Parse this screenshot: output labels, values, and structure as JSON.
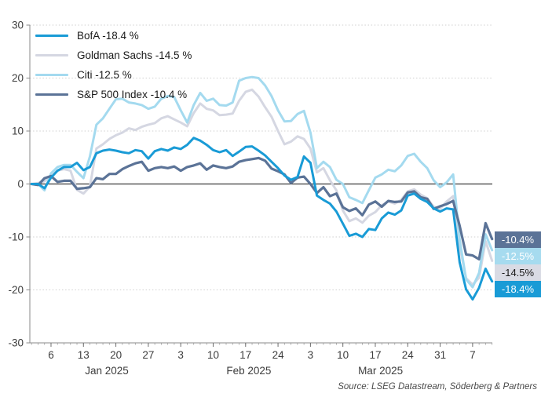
{
  "source": "Source: LSEG Datastream, Söderberg & Partners",
  "chart_data": {
    "type": "line",
    "title": "",
    "xlabel": "",
    "ylabel": "",
    "grid": "dotted horizontal gridlines, solid zero line",
    "legend_position": "top-left inside plot",
    "y_axis": {
      "min": -30,
      "max": 30,
      "step": 10,
      "labels": [
        30,
        20,
        10,
        0,
        -10,
        -20,
        -30
      ]
    },
    "dates": [
      "Jan 1",
      "Jan 2",
      "Jan 3",
      "Jan 6",
      "Jan 7",
      "Jan 8",
      "Jan 9",
      "Jan 10",
      "Jan 13",
      "Jan 14",
      "Jan 15",
      "Jan 16",
      "Jan 17",
      "Jan 20",
      "Jan 21",
      "Jan 22",
      "Jan 23",
      "Jan 24",
      "Jan 27",
      "Jan 28",
      "Jan 29",
      "Jan 30",
      "Jan 31",
      "Feb 3",
      "Feb 4",
      "Feb 5",
      "Feb 6",
      "Feb 7",
      "Feb 10",
      "Feb 11",
      "Feb 12",
      "Feb 13",
      "Feb 14",
      "Feb 17",
      "Feb 18",
      "Feb 19",
      "Feb 20",
      "Feb 21",
      "Feb 24",
      "Feb 25",
      "Feb 26",
      "Feb 27",
      "Feb 28",
      "Mar 3",
      "Mar 4",
      "Mar 5",
      "Mar 6",
      "Mar 7",
      "Mar 10",
      "Mar 11",
      "Mar 12",
      "Mar 13",
      "Mar 14",
      "Mar 17",
      "Mar 18",
      "Mar 19",
      "Mar 20",
      "Mar 21",
      "Mar 24",
      "Mar 25",
      "Mar 26",
      "Mar 27",
      "Mar 28",
      "Mar 31",
      "Apr 1",
      "Apr 2",
      "Apr 3",
      "Apr 4",
      "Apr 7",
      "Apr 8",
      "Apr 9",
      "Apr 10"
    ],
    "x_ticks": [
      {
        "label": "6",
        "i": 3
      },
      {
        "label": "13",
        "i": 8
      },
      {
        "label": "20",
        "i": 13
      },
      {
        "label": "27",
        "i": 18
      },
      {
        "label": "3",
        "i": 23
      },
      {
        "label": "10",
        "i": 28
      },
      {
        "label": "17",
        "i": 33
      },
      {
        "label": "24",
        "i": 38
      },
      {
        "label": "3",
        "i": 43
      },
      {
        "label": "10",
        "i": 48
      },
      {
        "label": "17",
        "i": 53
      },
      {
        "label": "24",
        "i": 58
      },
      {
        "label": "31",
        "i": 63
      },
      {
        "label": "7",
        "i": 68
      }
    ],
    "month_labels": [
      {
        "label": "Jan 2025",
        "i": 11.6
      },
      {
        "label": "Feb 2025",
        "i": 33.5
      },
      {
        "label": "Mar 2025",
        "i": 53.8
      }
    ],
    "series": [
      {
        "id": "bofa",
        "name": "BofA",
        "legend_label": "BofA -18.4 %",
        "final_value_pct": -18.4,
        "color": "#199BD6",
        "width": 3,
        "values": [
          0,
          0,
          -0.8,
          1.2,
          2.5,
          3.2,
          3.2,
          4,
          2.6,
          3.2,
          5.8,
          6.3,
          6.5,
          6.3,
          6,
          5.8,
          6.4,
          6.2,
          4.8,
          6.2,
          6.6,
          6.3,
          6.9,
          6.6,
          7.4,
          8.7,
          8.2,
          7.4,
          6.4,
          6,
          6.4,
          5.3,
          6.1,
          7,
          7.1,
          6.3,
          5.4,
          4.2,
          3,
          1.6,
          0.8,
          1.3,
          5.2,
          4,
          -2.2,
          -3,
          -3.7,
          -5.2,
          -7.5,
          -9.8,
          -9.4,
          -10,
          -8.5,
          -8.7,
          -6.5,
          -5.4,
          -5.8,
          -5,
          -2.2,
          -1.8,
          -2.8,
          -3.4,
          -4.6,
          -5.2,
          -4.6,
          -4.8,
          -14.8,
          -19.9,
          -21.8,
          -19.6,
          -16,
          -18.4
        ]
      },
      {
        "id": "goldman-sachs",
        "name": "Goldman Sachs",
        "legend_label": "Goldman Sachs -14.5 %",
        "final_value_pct": -14.5,
        "color": "#D5D7E2",
        "width": 3,
        "values": [
          0,
          0.2,
          0.5,
          1.5,
          2.5,
          2.8,
          2.5,
          -1.1,
          -1.8,
          -0.5,
          6.7,
          7.5,
          8.5,
          9.2,
          9.7,
          10.5,
          10.2,
          10.8,
          11.2,
          11.5,
          12.4,
          12.8,
          12.2,
          11.6,
          10.9,
          13.4,
          15.2,
          14.2,
          13.9,
          13,
          13.1,
          13.3,
          15.7,
          17.4,
          17.8,
          16.5,
          14.5,
          12.7,
          10,
          7.5,
          8,
          9,
          8.5,
          6.7,
          2.2,
          3,
          0.7,
          -1.2,
          -5,
          -7,
          -6.5,
          -7.3,
          -6,
          -5.3,
          -4,
          -3.3,
          -3.7,
          -3,
          -1.4,
          -1,
          -2,
          -2.7,
          -4.3,
          -4.6,
          -3.3,
          -2.3,
          -11.8,
          -17.8,
          -19,
          -17.7,
          -10.8,
          -14.5
        ]
      },
      {
        "id": "citi",
        "name": "Citi",
        "legend_label": "Citi -12.5 %",
        "final_value_pct": -12.5,
        "color": "#A4DAEF",
        "width": 3,
        "values": [
          0,
          0,
          -1.2,
          2,
          3.2,
          3.6,
          3.6,
          2.3,
          1.1,
          5.2,
          11.2,
          12.4,
          14.2,
          16,
          16.1,
          15.4,
          15.2,
          14.9,
          14.2,
          14.6,
          16.1,
          16.6,
          16.4,
          13.9,
          11.6,
          14.9,
          17.2,
          15.7,
          16.1,
          14.9,
          14.8,
          15.4,
          19.5,
          20,
          20.2,
          20,
          18.6,
          16.6,
          13.9,
          11.8,
          11.9,
          13.2,
          13.8,
          9.7,
          3,
          4.2,
          3.2,
          0.8,
          0,
          -2.5,
          -3,
          -3.6,
          -1.2,
          1.2,
          1.8,
          2.7,
          2.4,
          3.5,
          5.3,
          5.7,
          4.2,
          3,
          0.7,
          -0.6,
          0.3,
          1.8,
          -10.5,
          -18,
          -19.5,
          -16.8,
          -9.5,
          -12.5
        ]
      },
      {
        "id": "sp500",
        "name": "S&P 500 Index",
        "legend_label": "S&P 500 Index -10.4 %",
        "final_value_pct": -10.4,
        "color": "#5B7397",
        "width": 3.2,
        "values": [
          0,
          -0.2,
          1.1,
          1.5,
          0.4,
          0.6,
          0.6,
          -0.9,
          -0.8,
          -0.6,
          1.1,
          0.9,
          1.9,
          1.9,
          2.8,
          3.4,
          3.9,
          4.2,
          2.5,
          3,
          3.2,
          3,
          3.3,
          2.5,
          3.2,
          3.5,
          3.9,
          2.7,
          3.5,
          3.2,
          3,
          3.3,
          4.2,
          4.5,
          4.7,
          4.9,
          4.4,
          2.9,
          2.4,
          1.8,
          0.2,
          1.2,
          1.4,
          0,
          -1.7,
          -0.6,
          -2.3,
          -1.8,
          -4.4,
          -5.1,
          -4.6,
          -5.9,
          -3.9,
          -3.3,
          -4.3,
          -3.2,
          -3.4,
          -3.3,
          -1.6,
          -1.4,
          -2.5,
          -2.8,
          -4.7,
          -4.2,
          -3.8,
          -3.2,
          -7.9,
          -13.3,
          -13.5,
          -14.2,
          -7.4,
          -10.4
        ]
      }
    ],
    "right_labels": [
      {
        "text": "-10.4%",
        "bg": "#5B7397",
        "fg": "#FFFFFF"
      },
      {
        "text": "-12.5%",
        "bg": "#A6DBEF",
        "fg": "#FFFFFF"
      },
      {
        "text": "-14.5%",
        "bg": "#D9DBE4",
        "fg": "#1A1A1A"
      },
      {
        "text": "-18.4%",
        "bg": "#199BD6",
        "fg": "#FFFFFF"
      }
    ]
  }
}
